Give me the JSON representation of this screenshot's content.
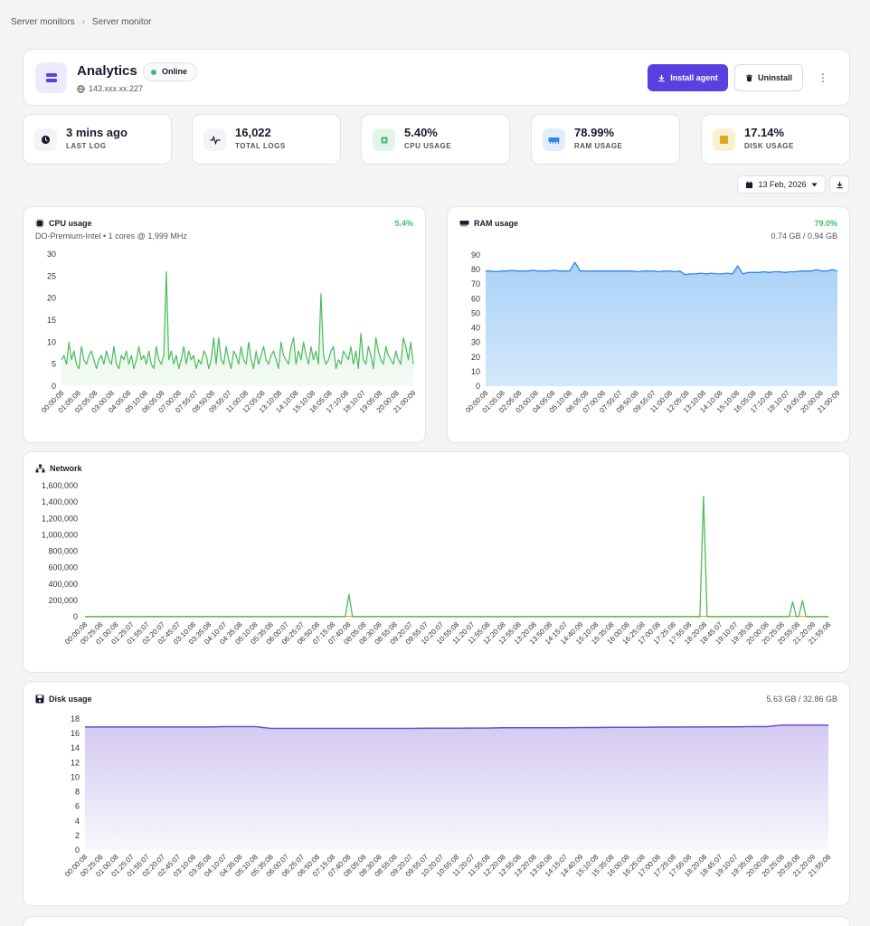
{
  "breadcrumb": {
    "items": [
      "Server monitors",
      "Server monitor"
    ]
  },
  "header": {
    "title": "Analytics",
    "status": "Online",
    "ip": "143.xxx.xx.227",
    "install_label": "Install agent",
    "uninstall_label": "Uninstall"
  },
  "stats": [
    {
      "value": "3 mins ago",
      "label": "LAST LOG",
      "icon": "clock-icon"
    },
    {
      "value": "16,022",
      "label": "TOTAL LOGS",
      "icon": "pulse-icon"
    },
    {
      "value": "5.40%",
      "label": "CPU USAGE",
      "icon": "cpu-icon"
    },
    {
      "value": "78.99%",
      "label": "RAM USAGE",
      "icon": "memory-icon"
    },
    {
      "value": "17.14%",
      "label": "DISK USAGE",
      "icon": "disk-icon"
    }
  ],
  "date_picker": {
    "value": "13 Feb, 2026"
  },
  "cpu": {
    "title": "CPU usage",
    "subtitle": "DO-Premium-Intel • 1 cores @ 1,999 MHz",
    "value": "5.4%"
  },
  "ram": {
    "title": "RAM usage",
    "value": "79.0%",
    "detail": "0.74 GB / 0.94 GB"
  },
  "network": {
    "title": "Network"
  },
  "disk": {
    "title": "Disk usage",
    "detail": "5.63 GB / 32.86 GB"
  },
  "colors": {
    "accent": "#5b3fe0",
    "green": "#3fbf6a",
    "blue": "#2f86eb",
    "purple": "#6b4fd0",
    "orange": "#f0a020"
  },
  "chart_data": [
    {
      "type": "line",
      "name": "cpu",
      "ylim": [
        0,
        30
      ],
      "yticks": [
        "0",
        "5",
        "10",
        "15",
        "20",
        "25",
        "30"
      ],
      "xticks": [
        "00:00:08",
        "01:05:08",
        "02:05:08",
        "03:00:08",
        "04:05:08",
        "05:10:08",
        "06:05:08",
        "07:00:08",
        "07:55:07",
        "08:50:08",
        "09:55:07",
        "11:00:08",
        "12:05:08",
        "13:10:08",
        "14:10:08",
        "15:10:08",
        "16:05:08",
        "17:10:08",
        "18:10:07",
        "19:05:08",
        "20:00:08",
        "21:00:09"
      ],
      "values": [
        6,
        7,
        5,
        10,
        6,
        8,
        5,
        4,
        9,
        6,
        5,
        7,
        8,
        6,
        4,
        6,
        7,
        5,
        8,
        6,
        5,
        9,
        5,
        4,
        7,
        6,
        8,
        5,
        7,
        4,
        6,
        9,
        6,
        7,
        5,
        8,
        5,
        4,
        9,
        6,
        5,
        7,
        26,
        6,
        8,
        5,
        7,
        4,
        6,
        9,
        5,
        8,
        6,
        7,
        4,
        6,
        5,
        8,
        7,
        4,
        6,
        11,
        5,
        11,
        6,
        5,
        9,
        6,
        4,
        8,
        7,
        5,
        9,
        6,
        5,
        10,
        6,
        4,
        8,
        5,
        7,
        9,
        6,
        5,
        7,
        8,
        6,
        4,
        10,
        7,
        6,
        5,
        9,
        11,
        5,
        8,
        6,
        10,
        7,
        5,
        9,
        6,
        8,
        5,
        21,
        7,
        5,
        6,
        8,
        9,
        4,
        6,
        5,
        8,
        7,
        6,
        9,
        5,
        8,
        4,
        12,
        6,
        5,
        9,
        7,
        4,
        11,
        8,
        6,
        5,
        9,
        7,
        6,
        5,
        8,
        6,
        5,
        11,
        9,
        6,
        10,
        5
      ]
    },
    {
      "type": "area",
      "name": "ram",
      "ylim": [
        0,
        90
      ],
      "yticks": [
        "0",
        "10",
        "20",
        "30",
        "40",
        "50",
        "60",
        "70",
        "80",
        "90"
      ],
      "xticks": [
        "00:00:08",
        "01:05:08",
        "02:05:08",
        "03:00:08",
        "04:05:08",
        "05:10:08",
        "06:05:08",
        "07:00:08",
        "07:55:07",
        "08:50:08",
        "09:55:07",
        "11:00:08",
        "12:05:08",
        "13:10:08",
        "14:10:08",
        "15:10:08",
        "16:05:08",
        "17:10:08",
        "18:10:07",
        "19:05:08",
        "20:00:08",
        "21:00:09"
      ],
      "values": [
        79,
        79,
        78.5,
        79,
        79,
        79.5,
        79,
        79,
        79,
        79.5,
        79,
        79,
        79,
        79.5,
        79,
        79,
        79,
        85,
        79,
        79,
        79,
        79,
        79,
        79,
        79,
        79,
        79,
        79,
        79,
        78.5,
        79,
        79,
        79,
        78.5,
        79,
        79,
        78.5,
        79,
        76.5,
        77,
        77,
        77.5,
        77,
        77.5,
        77,
        77,
        77.5,
        77,
        82.5,
        77,
        78,
        78,
        78,
        78.5,
        78,
        78.5,
        78.5,
        78,
        78.5,
        78.5,
        79,
        79,
        79,
        80,
        79,
        79,
        80,
        79
      ]
    },
    {
      "type": "line",
      "name": "network",
      "ylim": [
        0,
        1600000
      ],
      "yticks": [
        "0",
        "200,000",
        "400,000",
        "600,000",
        "800,000",
        "1,000,000",
        "1,200,000",
        "1,400,000",
        "1,600,000"
      ],
      "xticks": [
        "00:00:08",
        "00:25:08",
        "01:00:08",
        "01:25:07",
        "01:55:07",
        "02:20:07",
        "02:45:07",
        "03:10:08",
        "03:35:08",
        "04:10:07",
        "04:35:08",
        "05:10:08",
        "05:35:08",
        "06:00:07",
        "06:25:07",
        "06:50:08",
        "07:15:08",
        "07:40:08",
        "08:05:08",
        "08:30:08",
        "08:55:08",
        "09:20:07",
        "09:55:07",
        "10:20:07",
        "10:55:08",
        "11:20:07",
        "11:55:08",
        "12:20:08",
        "12:55:08",
        "13:20:08",
        "13:50:08",
        "14:15:07",
        "14:40:09",
        "15:10:08",
        "15:35:08",
        "16:00:08",
        "16:25:08",
        "17:00:08",
        "17:25:08",
        "17:55:08",
        "18:20:08",
        "18:45:07",
        "19:10:07",
        "19:35:08",
        "20:00:08",
        "20:25:08",
        "20:55:08",
        "21:20:09",
        "21:55:08"
      ],
      "series": [
        {
          "values": [
            0,
            0,
            0,
            0,
            0,
            0,
            0,
            0,
            0,
            0,
            0,
            0,
            0,
            0,
            0,
            0,
            0,
            0,
            0,
            0,
            0,
            0,
            0,
            0,
            0,
            0,
            0,
            0,
            0,
            0,
            0,
            0,
            0,
            0,
            0,
            0,
            0,
            0,
            0,
            0,
            0,
            0,
            0,
            0,
            0,
            0,
            0,
            0,
            0,
            0,
            0,
            0,
            0,
            0,
            0,
            0,
            0,
            0,
            0,
            0,
            0,
            0,
            0,
            0,
            0,
            0,
            0,
            0,
            0,
            0,
            0,
            0,
            0,
            0,
            0,
            0,
            0,
            0,
            0,
            0,
            0,
            0,
            0,
            0,
            0,
            0,
            0,
            0,
            0,
            0,
            0,
            0,
            0,
            0,
            0,
            0,
            0,
            0,
            0,
            0,
            0,
            0,
            0,
            0,
            0,
            0,
            0,
            0,
            0,
            0,
            0,
            0,
            0,
            0,
            0,
            0,
            0,
            0,
            0,
            0,
            0,
            0,
            0,
            0,
            0,
            0,
            0,
            0,
            0,
            0,
            0,
            0,
            0,
            0,
            0,
            0,
            0,
            0,
            0,
            0,
            0,
            0,
            0,
            0,
            0,
            0,
            0,
            0,
            0,
            0,
            0,
            0,
            0,
            0,
            0,
            0,
            0,
            0,
            0,
            0,
            0,
            0,
            0,
            0,
            0,
            0,
            0,
            0,
            0,
            0,
            0,
            0,
            0,
            0,
            0,
            0,
            0,
            0,
            0,
            0,
            0,
            0,
            0,
            0,
            0,
            0,
            0,
            0,
            0,
            0,
            0,
            0,
            0,
            0,
            0,
            0,
            0,
            0,
            0,
            0,
            0,
            0,
            0,
            0,
            0,
            0,
            0,
            0,
            0,
            0,
            0,
            0,
            0,
            0,
            0,
            0,
            0,
            0,
            0,
            0,
            0,
            0,
            0,
            0,
            0,
            0,
            0,
            0,
            0,
            0,
            0,
            0,
            0,
            0,
            0,
            0,
            0,
            0,
            0,
            0,
            0,
            0,
            0,
            0,
            0,
            0,
            0,
            0,
            0,
            0,
            0,
            0,
            0,
            0,
            0,
            0,
            0,
            0,
            0,
            0,
            0,
            0,
            0,
            0,
            0,
            0,
            0,
            0,
            0,
            0
          ]
        },
        {
          "values": []
        }
      ],
      "spikes": [
        {
          "at": 0.355,
          "value": 270000
        },
        {
          "at": 0.832,
          "value": 1470000
        },
        {
          "at": 0.952,
          "value": 180000
        },
        {
          "at": 0.965,
          "value": 200000
        }
      ]
    },
    {
      "type": "area",
      "name": "disk",
      "ylim": [
        0,
        18
      ],
      "yticks": [
        "0",
        "2",
        "4",
        "6",
        "8",
        "10",
        "12",
        "14",
        "16",
        "18"
      ],
      "xticks": [
        "00:00:08",
        "00:25:08",
        "01:00:08",
        "01:25:07",
        "01:55:07",
        "02:20:07",
        "02:45:07",
        "03:10:08",
        "03:35:08",
        "04:10:07",
        "04:35:08",
        "05:10:08",
        "05:35:08",
        "06:00:07",
        "06:25:07",
        "06:50:08",
        "07:15:08",
        "07:40:08",
        "08:05:08",
        "08:30:08",
        "08:55:08",
        "09:20:07",
        "09:55:07",
        "10:20:07",
        "10:55:08",
        "11:20:07",
        "11:55:08",
        "12:20:08",
        "12:55:08",
        "13:20:08",
        "13:50:08",
        "14:15:07",
        "14:40:09",
        "15:10:08",
        "15:35:08",
        "16:00:08",
        "16:25:08",
        "17:00:08",
        "17:25:08",
        "17:55:08",
        "18:20:08",
        "18:45:07",
        "19:10:07",
        "19:35:08",
        "20:00:08",
        "20:25:08",
        "20:55:08",
        "21:20:09",
        "21:55:08"
      ],
      "values": [
        16.9,
        16.9,
        16.9,
        16.9,
        16.9,
        16.9,
        16.9,
        16.9,
        16.9,
        16.95,
        16.95,
        16.95,
        16.7,
        16.7,
        16.7,
        16.7,
        16.7,
        16.7,
        16.7,
        16.7,
        16.7,
        16.7,
        16.72,
        16.72,
        16.72,
        16.75,
        16.75,
        16.78,
        16.78,
        16.8,
        16.8,
        16.8,
        16.82,
        16.82,
        16.85,
        16.85,
        16.85,
        16.88,
        16.88,
        16.9,
        16.9,
        16.92,
        16.92,
        16.95,
        16.95,
        17.14,
        17.14,
        17.14,
        17.14
      ]
    }
  ]
}
